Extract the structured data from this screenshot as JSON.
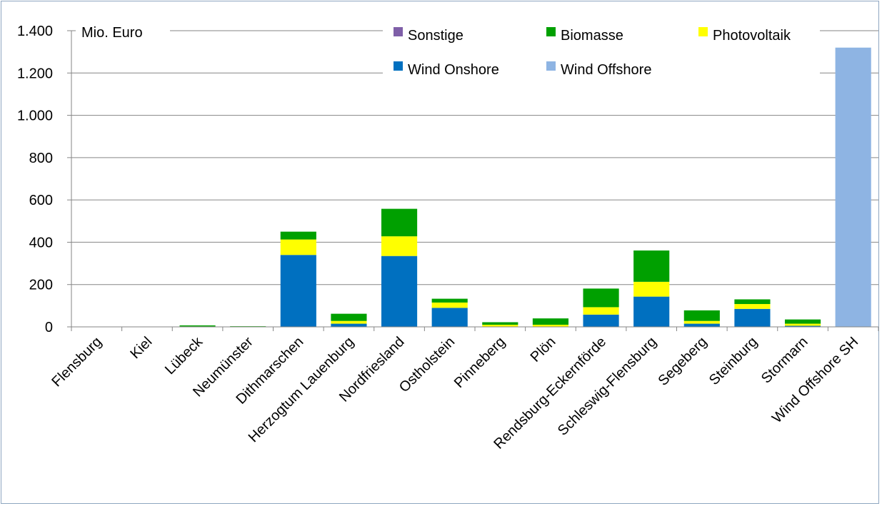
{
  "chart_data": {
    "type": "bar",
    "stacked": true,
    "unit_label": "Mio. Euro",
    "ylim": [
      0,
      1400
    ],
    "ytick_values": [
      0,
      200,
      400,
      600,
      800,
      1000,
      1200,
      1400
    ],
    "ytick_labels": [
      "0",
      "200",
      "400",
      "600",
      "800",
      "1.000",
      "1.200",
      "1.400"
    ],
    "grid": true,
    "categories": [
      "Flensburg",
      "Kiel",
      "Lübeck",
      "Neumünster",
      "Dithmarschen",
      "Herzogtum Lauenburg",
      "Nordfriesland",
      "Ostholstein",
      "Pinneberg",
      "Plön",
      "Rendsburg-Eckernförde",
      "Schleswig-Flensburg",
      "Segeberg",
      "Steinburg",
      "Stormarn",
      "Wind Offshore SH"
    ],
    "series": [
      {
        "name": "Wind Onshore",
        "color": "#0070c0",
        "values": [
          0,
          0,
          0,
          0,
          340,
          15,
          335,
          90,
          0,
          0,
          58,
          143,
          15,
          85,
          5,
          0
        ]
      },
      {
        "name": "Photovoltaik",
        "color": "#ffff00",
        "values": [
          0,
          0,
          2,
          2,
          73,
          13,
          93,
          25,
          10,
          10,
          35,
          70,
          13,
          23,
          10,
          0
        ]
      },
      {
        "name": "Biomasse",
        "color": "#00a000",
        "values": [
          0,
          0,
          5,
          1,
          37,
          34,
          130,
          18,
          12,
          30,
          88,
          148,
          50,
          22,
          20,
          0
        ]
      },
      {
        "name": "Sonstige",
        "color": "#7f5fa8",
        "values": [
          0,
          0,
          0,
          0,
          0,
          0,
          0,
          0,
          0,
          0,
          0,
          0,
          0,
          0,
          0,
          0
        ]
      },
      {
        "name": "Wind Offshore",
        "color": "#8eb4e3",
        "values": [
          0,
          0,
          0,
          0,
          0,
          0,
          0,
          0,
          0,
          0,
          0,
          0,
          0,
          0,
          0,
          1320
        ]
      }
    ],
    "legend": {
      "placement": "top-right",
      "order": [
        "Sonstige",
        "Biomasse",
        "Photovoltaik",
        "Wind Onshore",
        "Wind Offshore"
      ]
    },
    "colors": {
      "axis": "#868686",
      "grid": "#868686",
      "frame": "#8ea6c0"
    }
  }
}
